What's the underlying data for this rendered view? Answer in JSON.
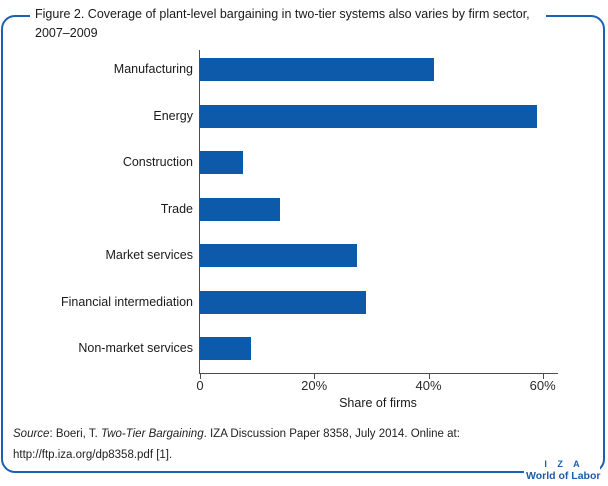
{
  "title": "Figure 2. Coverage of plant-level bargaining in two-tier systems also varies by firm sector, 2007–2009",
  "chart_data": {
    "type": "bar",
    "orientation": "horizontal",
    "title": "Figure 2. Coverage of plant-level bargaining in two-tier systems also varies by firm sector, 2007–2009",
    "categories": [
      "Manufacturing",
      "Energy",
      "Construction",
      "Trade",
      "Market services",
      "Financial intermediation",
      "Non-market services"
    ],
    "values": [
      41,
      59,
      7.5,
      14,
      27.5,
      29,
      9
    ],
    "unit": "percent",
    "xlabel": "Share of firms",
    "ylabel": "",
    "xlim": [
      0,
      62.5
    ],
    "xticks": [
      {
        "value": 0,
        "label": "0"
      },
      {
        "value": 20,
        "label": "20%"
      },
      {
        "value": 40,
        "label": "40%"
      },
      {
        "value": 60,
        "label": "60%"
      }
    ],
    "grid": false,
    "legend": null,
    "bar_color": "#0d5aab"
  },
  "source": {
    "parts": [
      {
        "text": "Source",
        "italic": true
      },
      {
        "text": ": Boeri, T. ",
        "italic": false
      },
      {
        "text": "Two-Tier Bargaining",
        "italic": true
      },
      {
        "text": ". IZA Discussion Paper 8358, July 2014. Online at: http://ftp.iza.org/dp8358.pdf [1].",
        "italic": false
      }
    ]
  },
  "logo": {
    "line1": "I Z A",
    "line2": "World of Labor"
  },
  "colors": {
    "bar": "#0d5aab",
    "frame": "#1c60b2",
    "axis": "#4c4c4c",
    "text": "#1a1a1a",
    "logo": "#1a5dad"
  }
}
